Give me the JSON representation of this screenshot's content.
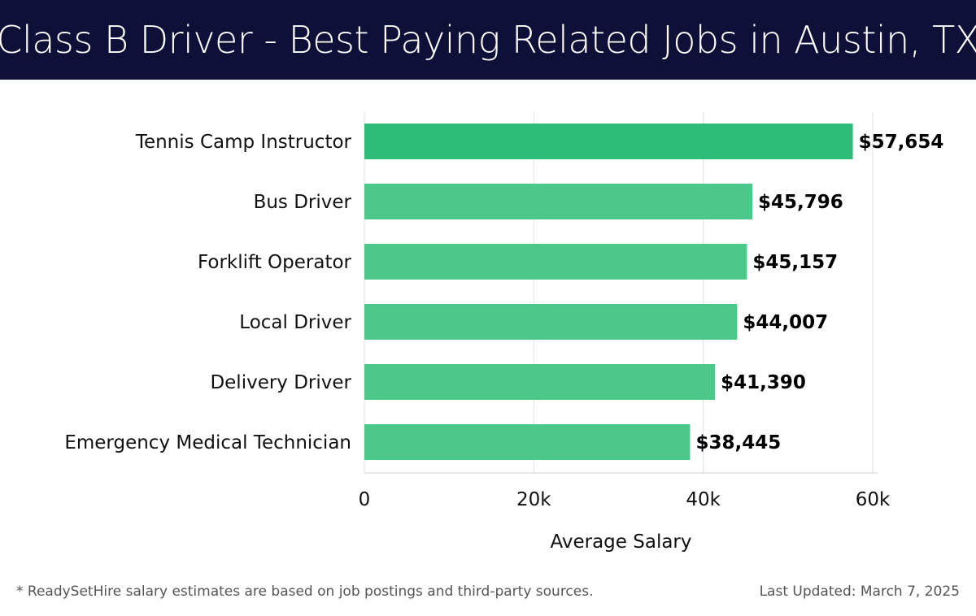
{
  "header": {
    "title": "Class B Driver - Best Paying Related Jobs in Austin, TX"
  },
  "chart_data": {
    "type": "bar",
    "orientation": "horizontal",
    "categories": [
      "Tennis Camp Instructor",
      "Bus Driver",
      "Forklift Operator",
      "Local Driver",
      "Delivery Driver",
      "Emergency Medical Technician"
    ],
    "values": [
      57654,
      45796,
      45157,
      44007,
      41390,
      38445
    ],
    "value_labels": [
      "$57,654",
      "$45,796",
      "$45,157",
      "$44,007",
      "$41,390",
      "$38,445"
    ],
    "xlabel": "Average Salary",
    "ylabel": "",
    "xlim": [
      0,
      60000
    ],
    "xticks": [
      0,
      20000,
      40000,
      60000
    ],
    "xtick_labels": [
      "0",
      "20k",
      "40k",
      "60k"
    ],
    "grid": true,
    "colors": {
      "top_bar": "#2ebd78",
      "bar": "#4cc88a",
      "grid": "#e2e2e2"
    }
  },
  "footer": {
    "footnote": "* ReadySetHire salary estimates are based on job postings and third-party sources.",
    "updated": "Last Updated: March 7, 2025"
  }
}
